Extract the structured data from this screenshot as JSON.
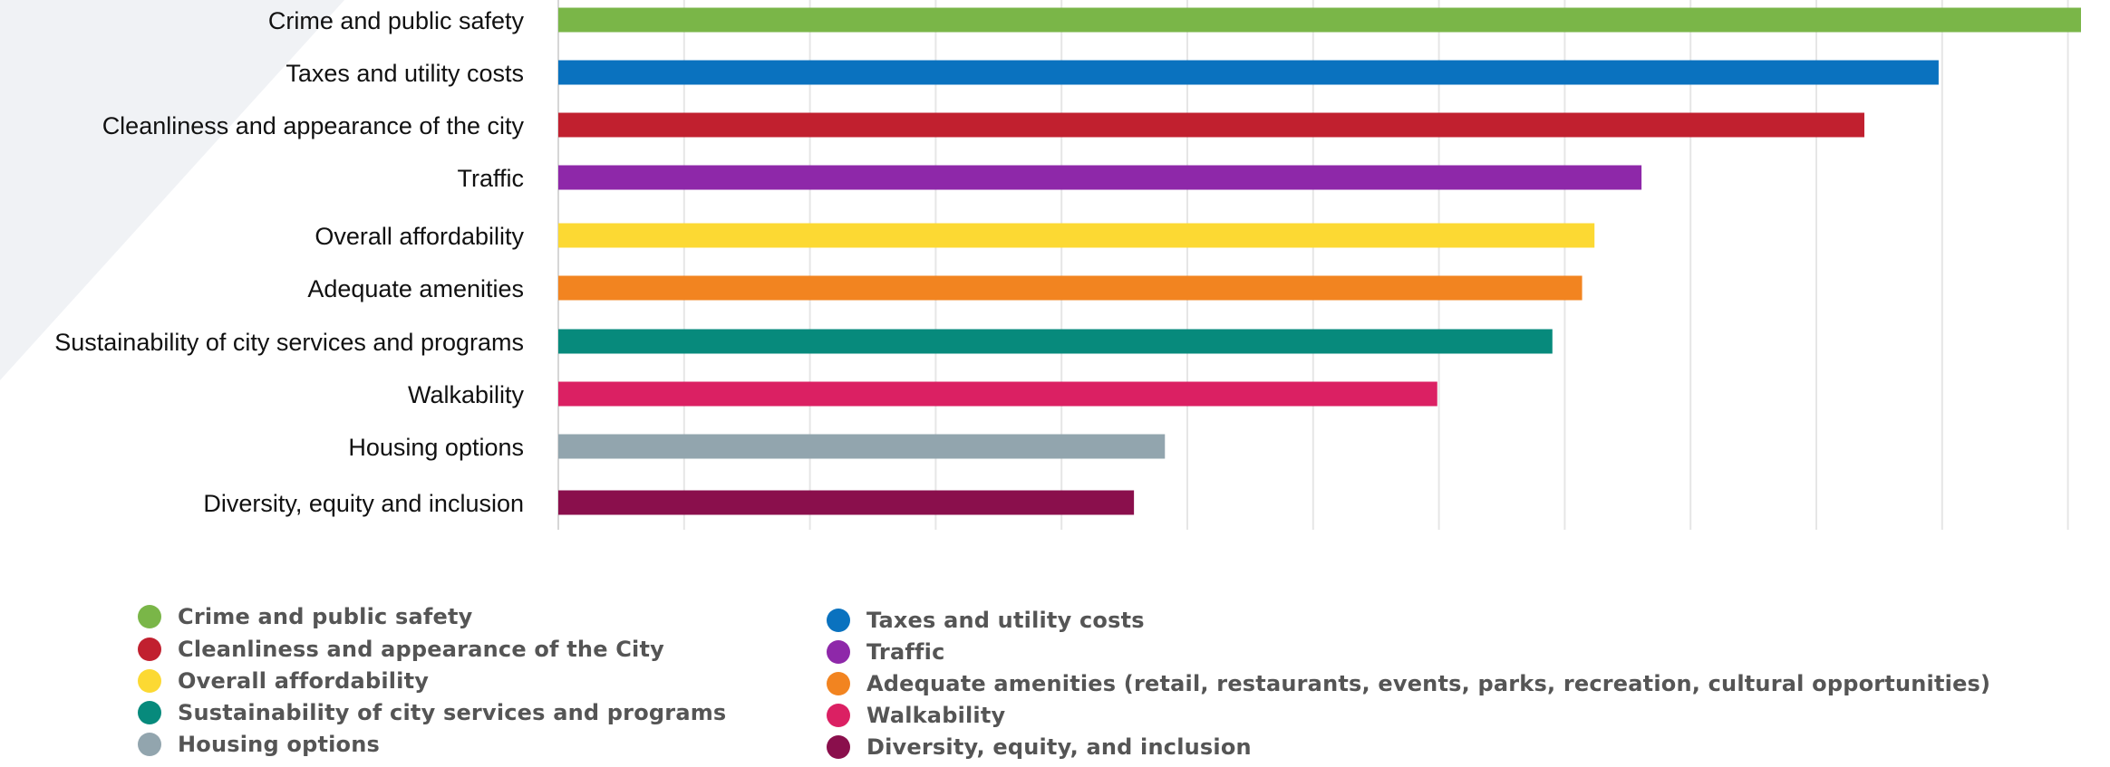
{
  "chart_data": {
    "type": "bar",
    "orientation": "horizontal",
    "categories": [
      "Crime and public safety",
      "Taxes and utility costs",
      "Cleanliness and appearance of the city",
      "Traffic",
      "Overall affordability",
      "Adequate amenities",
      "Sustainability of city services and programs",
      "Walkability",
      "Housing options",
      "Diversity, equity and inclusion"
    ],
    "values": [
      12.3,
      11.15,
      10.55,
      8.75,
      8.37,
      8.27,
      8.03,
      7.1,
      4.9,
      4.65
    ],
    "colors": [
      "#7ab648",
      "#0a72bf",
      "#c1202f",
      "#8e28a9",
      "#fcd933",
      "#f28420",
      "#078a7c",
      "#db2063",
      "#92a5ae",
      "#8a0f4c"
    ],
    "xlim": [
      0,
      12.3
    ],
    "grid": true,
    "legend_position": "bottom",
    "legend": {
      "columns": [
        [
          {
            "label": "Crime and public safety",
            "color": "#7ab648"
          },
          {
            "label": "Cleanliness and appearance of the City",
            "color": "#c1202f"
          },
          {
            "label": "Overall affordability",
            "color": "#fcd933"
          },
          {
            "label": "Sustainability of city services and programs",
            "color": "#078a7c"
          },
          {
            "label": "Housing options",
            "color": "#92a5ae"
          }
        ],
        [
          {
            "label": "Taxes and utility costs",
            "color": "#0a72bf"
          },
          {
            "label": "Traffic",
            "color": "#8e28a9"
          },
          {
            "label": "Adequate amenities (retail, restaurants, events, parks, recreation, cultural opportunities)",
            "color": "#f28420"
          },
          {
            "label": "Walkability",
            "color": "#db2063"
          },
          {
            "label": "Diversity, equity, and inclusion",
            "color": "#8a0f4c"
          }
        ]
      ]
    }
  }
}
